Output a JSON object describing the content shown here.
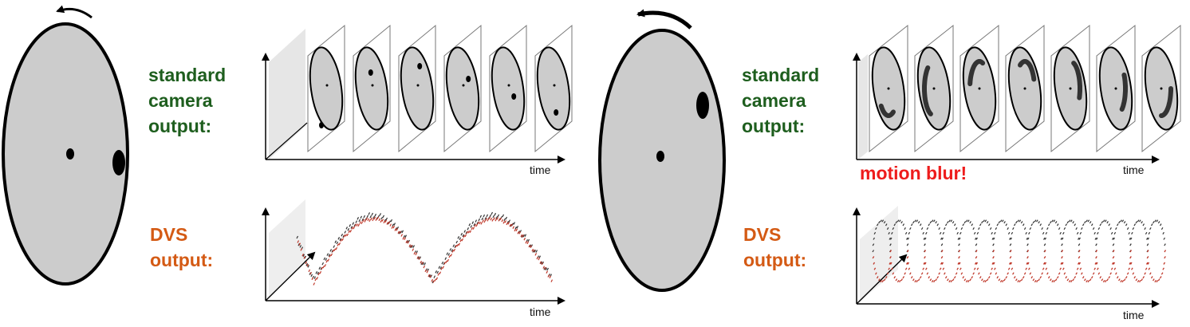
{
  "colors": {
    "disk_fill": "#cccccc",
    "outline": "#000000",
    "standard_label": "#1e5e1e",
    "dvs_label": "#d45a14",
    "blur_label": "#ee1c1c",
    "event_dark": "#333333",
    "event_red": "#c0392b",
    "frame_bg": "#ffffff",
    "shadow": "#e6e6e6"
  },
  "panels": {
    "left": {
      "rotation": "slow",
      "standard_label": [
        "standard",
        "camera",
        "output:"
      ],
      "dvs_label": [
        "DVS",
        "output:"
      ],
      "time_label_top": "time",
      "time_label_bottom": "time"
    },
    "right": {
      "rotation": "fast",
      "standard_label": [
        "standard",
        "camera",
        "output:"
      ],
      "dvs_label": [
        "DVS",
        "output:"
      ],
      "motion_blur_label": "motion blur!",
      "time_label_top": "time",
      "time_label_bottom": "time"
    }
  },
  "icons": {
    "rotation_arrow": "curved-arrow-icon"
  }
}
